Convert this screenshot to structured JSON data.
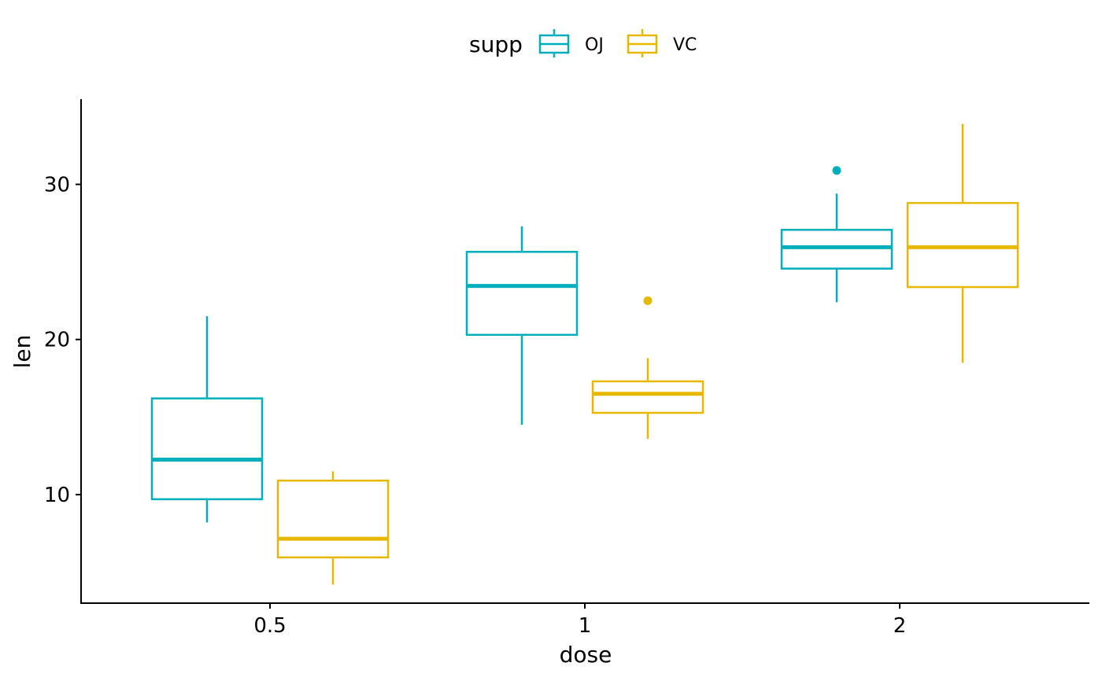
{
  "chart_data": {
    "type": "boxplot",
    "xlabel": "dose",
    "ylabel": "len",
    "categories": [
      "0.5",
      "1",
      "2"
    ],
    "y_ticks": [
      10,
      20,
      30
    ],
    "ylim": [
      3.0,
      35.5
    ],
    "grid": false,
    "legend": {
      "title": "supp",
      "position": "top"
    },
    "series": [
      {
        "name": "OJ",
        "color": "#00AFBB",
        "boxes": [
          {
            "category": "0.5",
            "whisker_low": 8.2,
            "q1": 9.7,
            "median": 12.25,
            "q3": 16.2,
            "whisker_high": 21.5,
            "outliers": []
          },
          {
            "category": "1",
            "whisker_low": 14.5,
            "q1": 20.3,
            "median": 23.45,
            "q3": 25.65,
            "whisker_high": 27.3,
            "outliers": []
          },
          {
            "category": "2",
            "whisker_low": 22.4,
            "q1": 24.57,
            "median": 25.95,
            "q3": 27.07,
            "whisker_high": 29.4,
            "outliers": [
              30.9
            ]
          }
        ]
      },
      {
        "name": "VC",
        "color": "#E7B800",
        "boxes": [
          {
            "category": "0.5",
            "whisker_low": 4.2,
            "q1": 5.95,
            "median": 7.15,
            "q3": 10.9,
            "whisker_high": 11.5,
            "outliers": []
          },
          {
            "category": "1",
            "whisker_low": 13.6,
            "q1": 15.27,
            "median": 16.5,
            "q3": 17.3,
            "whisker_high": 18.8,
            "outliers": [
              22.5
            ]
          },
          {
            "category": "2",
            "whisker_low": 18.5,
            "q1": 23.38,
            "median": 25.95,
            "q3": 28.8,
            "whisker_high": 33.9,
            "outliers": []
          }
        ]
      }
    ]
  }
}
